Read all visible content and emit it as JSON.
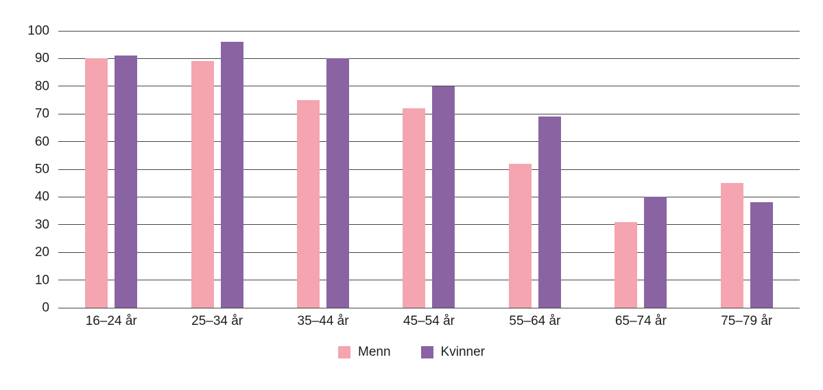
{
  "chart_data": {
    "type": "bar",
    "title": "",
    "categories": [
      "16–24 år",
      "25–34 år",
      "35–44 år",
      "45–54 år",
      "55–64 år",
      "65–74 år",
      "75–79 år"
    ],
    "series": [
      {
        "name": "Menn",
        "color": "#F4A5AF",
        "values": [
          90,
          89,
          75,
          72,
          52,
          31,
          45
        ]
      },
      {
        "name": "Kvinner",
        "color": "#8A63A3",
        "values": [
          91,
          96,
          90,
          80,
          69,
          40,
          38
        ]
      }
    ],
    "ylim": [
      0,
      100
    ],
    "yticks": [
      0,
      10,
      20,
      30,
      40,
      50,
      60,
      70,
      80,
      90,
      100
    ],
    "grid": true,
    "gridline_color": "#454545",
    "legend_position": "bottom"
  }
}
